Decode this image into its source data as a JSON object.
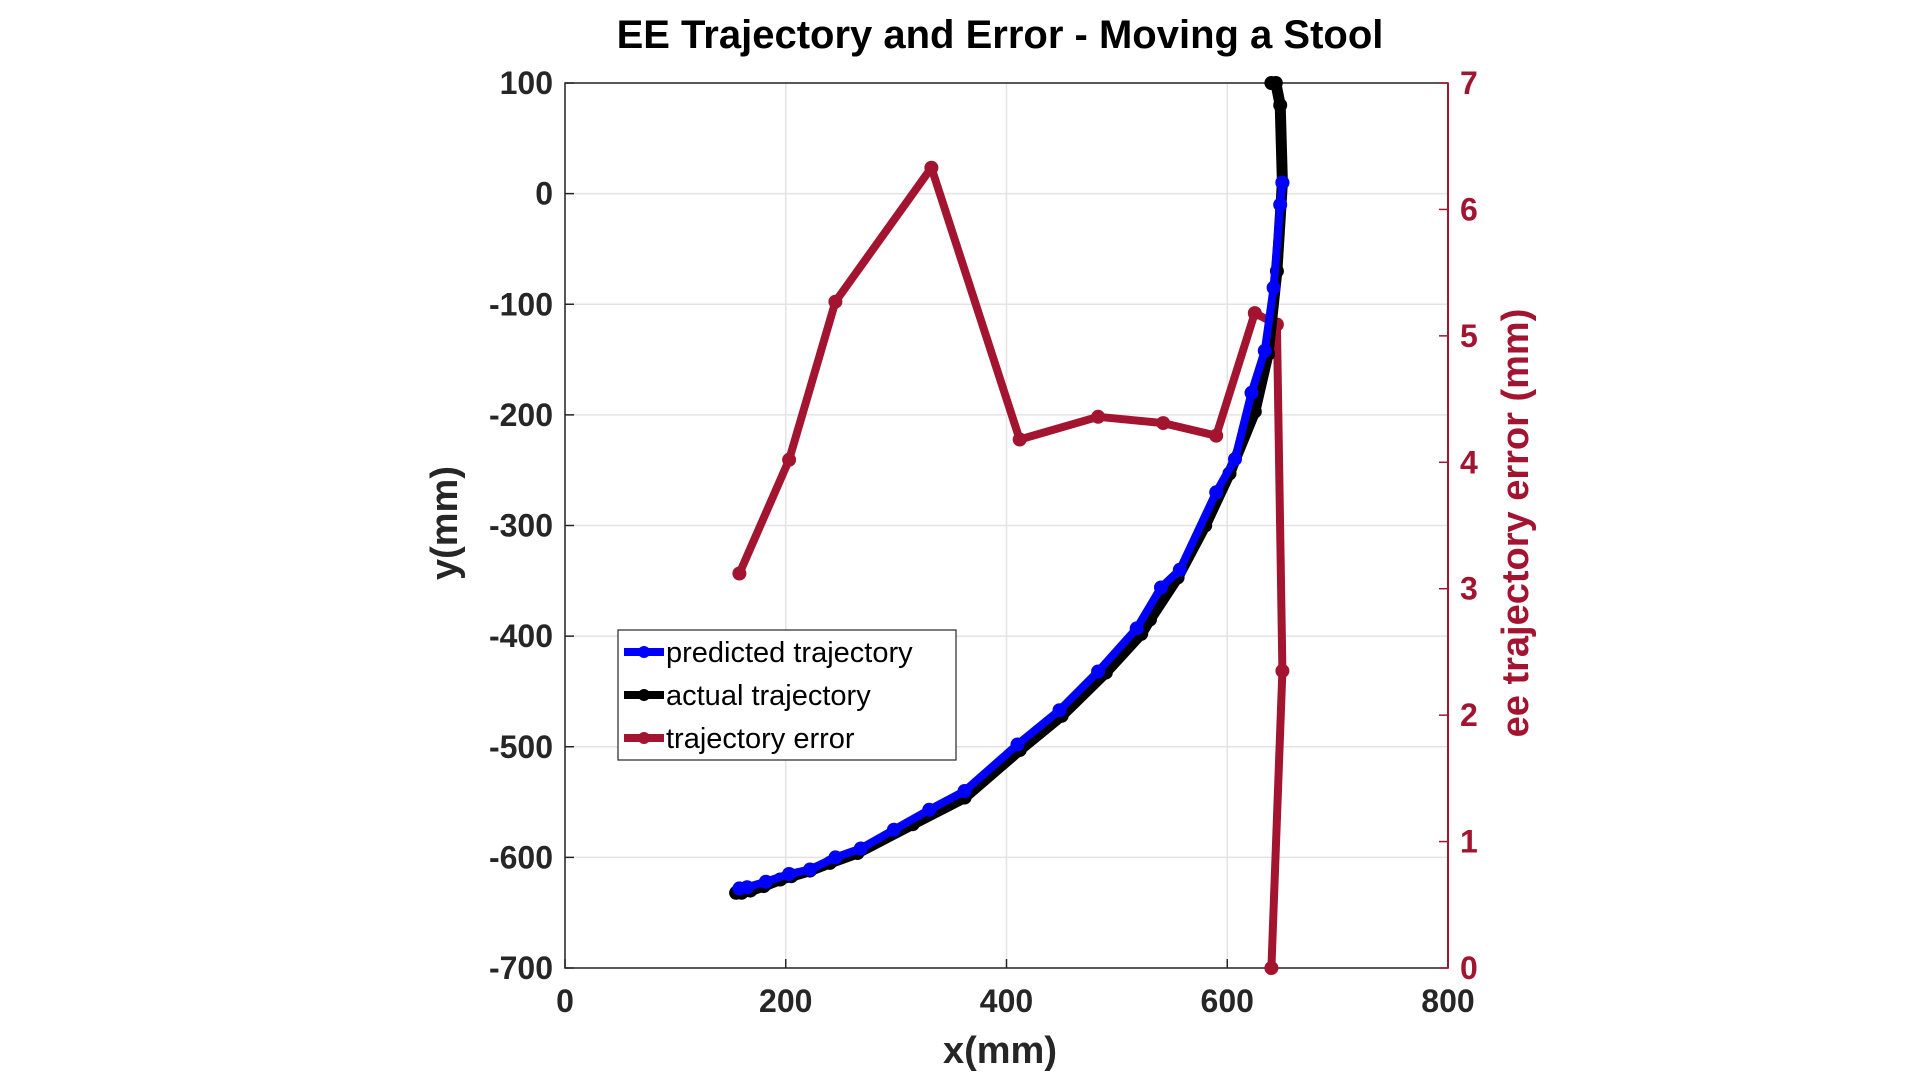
{
  "chart_data": {
    "type": "line",
    "title": "EE Trajectory and Error - Moving a Stool",
    "xlabel": "x(mm)",
    "ylabel": "y(mm)",
    "y2label": "ee trajectory error (mm)",
    "xlim": [
      0,
      800
    ],
    "ylim": [
      -700,
      100
    ],
    "y2lim": [
      0,
      7
    ],
    "xticks": [
      "0",
      "200",
      "400",
      "600",
      "800"
    ],
    "yticks": [
      "-700",
      "-600",
      "-500",
      "-400",
      "-300",
      "-200",
      "-100",
      "0",
      "100"
    ],
    "y2ticks": [
      "0",
      "1",
      "2",
      "3",
      "4",
      "5",
      "6",
      "7"
    ],
    "grid": true,
    "legend_position": "center-left",
    "series": [
      {
        "name": "predicted trajectory",
        "axis": "left",
        "color": "#0000ff",
        "x": [
          158,
          165,
          182,
          203,
          222,
          245,
          268,
          298,
          330,
          362,
          410,
          448,
          483,
          518,
          540,
          557,
          590,
          607,
          622,
          634,
          642,
          648,
          650
        ],
        "y": [
          -628,
          -627,
          -622,
          -615,
          -611,
          -600,
          -592,
          -575,
          -557,
          -540,
          -498,
          -467,
          -432,
          -393,
          -356,
          -340,
          -270,
          -240,
          -180,
          -142,
          -85,
          -10,
          10
        ]
      },
      {
        "name": "actual trajectory",
        "axis": "left",
        "color": "#000000",
        "x": [
          155,
          160,
          168,
          180,
          195,
          205,
          222,
          240,
          265,
          315,
          362,
          412,
          450,
          490,
          522,
          530,
          555,
          580,
          602,
          625,
          637,
          645,
          650,
          648,
          644,
          640
        ],
        "y": [
          -632,
          -632,
          -630,
          -626,
          -620,
          -617,
          -612,
          -605,
          -596,
          -570,
          -546,
          -503,
          -472,
          -433,
          -398,
          -385,
          -347,
          -300,
          -253,
          -197,
          -145,
          -70,
          10,
          80,
          100,
          100
        ]
      },
      {
        "name": "trajectory error",
        "axis": "right",
        "color": "#a2142f",
        "x": [
          158,
          203,
          245,
          332,
          412,
          483,
          542,
          590,
          625,
          645,
          650,
          640
        ],
        "y": [
          3.12,
          4.02,
          5.27,
          6.33,
          4.18,
          4.36,
          4.31,
          4.21,
          5.18,
          5.09,
          2.35,
          0.0
        ]
      }
    ]
  }
}
